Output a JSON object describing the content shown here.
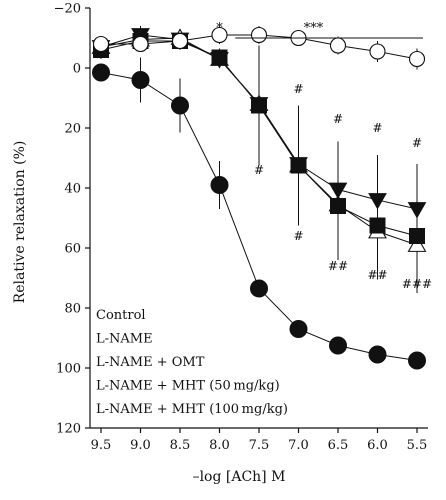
{
  "chart_data": {
    "type": "line",
    "xlabel": "–log [ACh] M",
    "ylabel": "Relative relaxation (%)",
    "x_reversed": true,
    "y_inverted": true,
    "xlim": [
      9.5,
      5.5
    ],
    "ylim": [
      -20,
      120
    ],
    "x_ticks": [
      "9.5",
      "9.0",
      "8.5",
      "8.0",
      "7.5",
      "7.0",
      "6.5",
      "6.0",
      "5.5"
    ],
    "y_ticks": [
      "−20",
      "0",
      "20",
      "40",
      "60",
      "80",
      "100",
      "120"
    ],
    "x": [
      9.5,
      9.0,
      8.5,
      8.0,
      7.5,
      7.0,
      6.5,
      6.0,
      5.5
    ],
    "legend": {
      "placement": "bottom-left",
      "entries": [
        "Control",
        "L-NAME",
        "L-NAME + OMT",
        "L-NAME + MHT (50 mg/kg)",
        "L-NAME + MHT (100 mg/kg)"
      ]
    },
    "series": [
      {
        "marker": "circle-filled",
        "values": [
          1.5,
          4,
          12.5,
          39,
          73.5,
          87,
          92.5,
          95.5,
          97.5
        ],
        "errors": [
          null,
          7.5,
          9,
          8,
          3,
          null,
          null,
          null,
          null
        ]
      },
      {
        "marker": "circle-open",
        "values": [
          -8,
          -8,
          -9,
          -11,
          -11,
          -10,
          -7.5,
          -5.5,
          -3
        ],
        "errors": [
          null,
          null,
          null,
          3,
          3,
          null,
          3,
          3.5,
          3.5
        ]
      },
      {
        "marker": "triangle-up-open",
        "values": [
          -7,
          -9.5,
          -10,
          -3,
          12,
          32.5,
          45.5,
          54.5,
          59
        ],
        "errors": [
          3,
          3,
          3,
          3,
          11,
          14,
          14,
          16,
          16
        ]
      },
      {
        "marker": "triangle-down-filled",
        "values": [
          -7,
          -11,
          -9.5,
          -3,
          12,
          32,
          40.5,
          44,
          47
        ],
        "errors": [
          3,
          3,
          3,
          3,
          17,
          16,
          16,
          15,
          15
        ]
      },
      {
        "marker": "square-filled",
        "values": [
          -6,
          -9,
          -9,
          -3.5,
          12.5,
          32.5,
          46,
          52.5,
          56
        ],
        "errors": [
          3,
          3,
          3,
          3,
          20,
          20,
          18,
          14,
          14
        ]
      }
    ],
    "annotations": {
      "star_single": {
        "x": 8.0,
        "text": "*"
      },
      "star_triple": {
        "x_from": 7.8,
        "x_to": 5.5,
        "text": "***"
      },
      "hash_marks": [
        {
          "x": 7.0,
          "y": 7,
          "text": "#"
        },
        {
          "x": 6.5,
          "y": 17,
          "text": "#"
        },
        {
          "x": 6.0,
          "y": 20,
          "text": "#"
        },
        {
          "x": 5.5,
          "y": 25,
          "text": "#"
        },
        {
          "x": 7.5,
          "y": 34,
          "text": "#"
        },
        {
          "x": 7.0,
          "y": 56,
          "text": "#"
        },
        {
          "x": 6.5,
          "y": 66,
          "text": "##"
        },
        {
          "x": 6.0,
          "y": 69,
          "text": "##"
        },
        {
          "x": 5.5,
          "y": 72,
          "text": "###"
        }
      ]
    }
  }
}
